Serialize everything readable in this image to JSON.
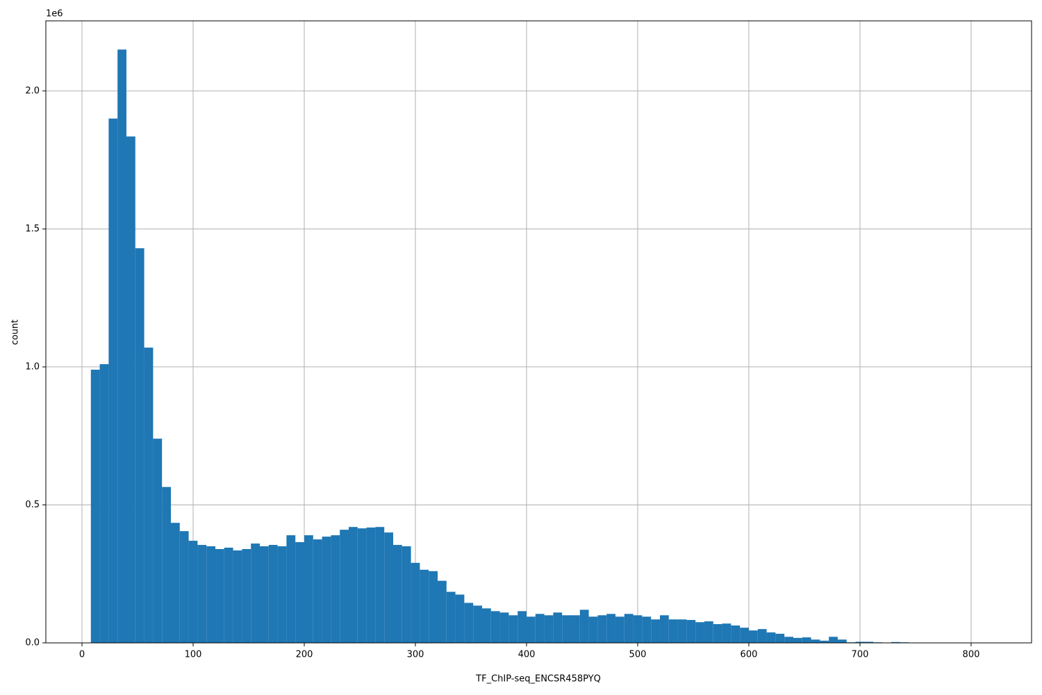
{
  "chart_data": {
    "type": "histogram",
    "x_label": "TF_ChIP-seq_ENCSR458PYQ",
    "y_label": "count",
    "y_offset_label": "1e6",
    "color": "#1f77b4",
    "grid": true,
    "bins": [
      8,
      16,
      24,
      32,
      40,
      48,
      56,
      64,
      72,
      80,
      88,
      96,
      104,
      112,
      120,
      128,
      136,
      144,
      152,
      160,
      168,
      176,
      184,
      192,
      200,
      208,
      216,
      224,
      232,
      240,
      248,
      256,
      264,
      272,
      280,
      288,
      296,
      304,
      312,
      320,
      328,
      336,
      344,
      352,
      360,
      368,
      376,
      384,
      392,
      400,
      408,
      416,
      424,
      432,
      440,
      448,
      456,
      464,
      472,
      480,
      488,
      496,
      504,
      512,
      520,
      528,
      536,
      544,
      552,
      560,
      568,
      576,
      584,
      592,
      600,
      608,
      616,
      624,
      632,
      640,
      648,
      656,
      664,
      672,
      680,
      688,
      696,
      704,
      712,
      720,
      728,
      736,
      744,
      752,
      760,
      768,
      776,
      784,
      792,
      800,
      808
    ],
    "counts": [
      990000,
      1010000,
      1900000,
      2150000,
      1835000,
      1430000,
      1070000,
      740000,
      565000,
      435000,
      405000,
      370000,
      355000,
      350000,
      340000,
      345000,
      335000,
      340000,
      360000,
      350000,
      355000,
      350000,
      390000,
      365000,
      390000,
      375000,
      385000,
      390000,
      410000,
      420000,
      415000,
      418000,
      420000,
      400000,
      355000,
      350000,
      290000,
      265000,
      260000,
      225000,
      185000,
      175000,
      145000,
      135000,
      125000,
      115000,
      110000,
      100000,
      115000,
      95000,
      105000,
      100000,
      110000,
      100000,
      100000,
      120000,
      95000,
      100000,
      105000,
      95000,
      105000,
      100000,
      95000,
      85000,
      100000,
      85000,
      85000,
      83000,
      75000,
      78000,
      68000,
      70000,
      63000,
      55000,
      45000,
      50000,
      38000,
      33000,
      22000,
      18000,
      20000,
      12000,
      8000,
      22000,
      12000,
      2000,
      4000,
      4000,
      2000,
      1000,
      3000,
      2000,
      0,
      0,
      0,
      0,
      0,
      0,
      0,
      0
    ],
    "xlim": [
      -32.5,
      854.4
    ],
    "ylim": [
      0,
      2254000
    ],
    "xticks": [
      0,
      100,
      200,
      300,
      400,
      500,
      600,
      700,
      800
    ],
    "yticks": [
      {
        "value": 0,
        "label": "0.0"
      },
      {
        "value": 500000,
        "label": "0.5"
      },
      {
        "value": 1000000,
        "label": "1.0"
      },
      {
        "value": 1500000,
        "label": "1.5"
      },
      {
        "value": 2000000,
        "label": "2.0"
      }
    ]
  }
}
